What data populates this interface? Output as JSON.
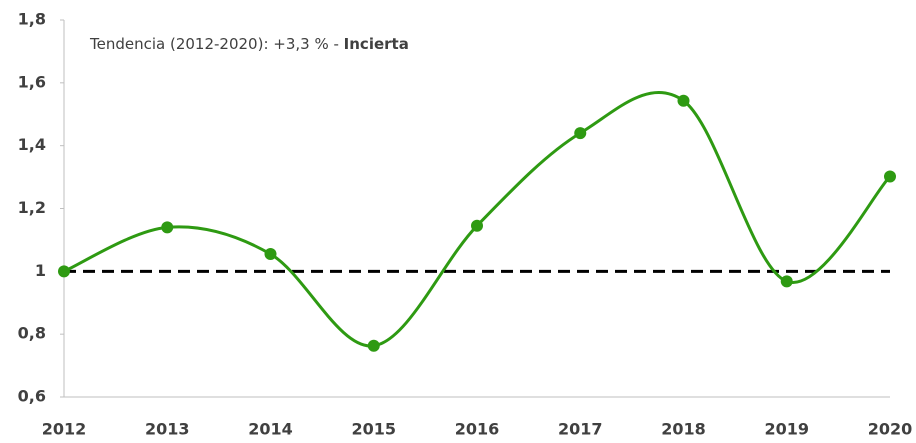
{
  "chart_data": {
    "type": "line",
    "annotation": "Tendencia (2012-2020): +3,3 % - ",
    "annotation_bold": "Incierta",
    "categories": [
      "2012",
      "2013",
      "2014",
      "2015",
      "2016",
      "2017",
      "2018",
      "2019",
      "2020"
    ],
    "series": [
      {
        "name": "Tendencia",
        "color": "#2e9a12",
        "values": [
          1.0,
          1.14,
          1.055,
          0.763,
          1.145,
          1.44,
          1.543,
          0.968,
          1.302
        ]
      }
    ],
    "reference_line": 1,
    "ylim": [
      0.6,
      1.8
    ],
    "yticks": [
      {
        "value": 0.6,
        "label": "0,6"
      },
      {
        "value": 0.8,
        "label": "0,8"
      },
      1,
      {
        "value": 1.2,
        "label": "1,2"
      },
      {
        "value": 1.4,
        "label": "1,4"
      },
      {
        "value": 1.6,
        "label": "1,6"
      },
      {
        "value": 1.8,
        "label": "1,8"
      }
    ],
    "grid": false
  }
}
